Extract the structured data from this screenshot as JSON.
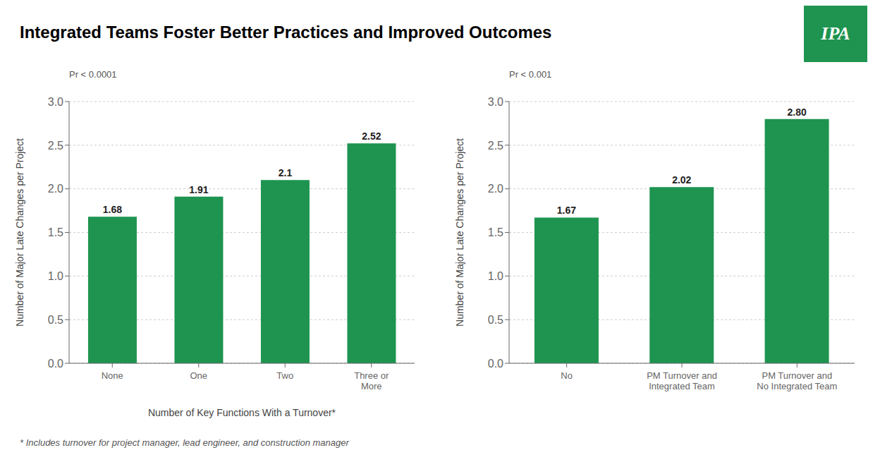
{
  "title": "Integrated Teams Foster Better Practices and Improved Outcomes",
  "annotations": [
    "* Includes turnover for project manager, lead engineer, and construction manager",
    "IPA"
  ],
  "chart_data": [
    {
      "type": "bar",
      "categories": [
        "None",
        "One",
        "Two",
        "Three or\nMore"
      ],
      "values": [
        1.68,
        1.91,
        2.1,
        2.52
      ],
      "color": "#1e9450",
      "xlabel": "Number of Key Functions With a Turnover*",
      "ylabel": "Number of Major Late Changes per Project",
      "annotations": [
        "Pr < 0.0001"
      ],
      "ylim": [
        0,
        3.0
      ],
      "yticks": [
        {
          "value": 0,
          "label": "0.0"
        },
        0.5,
        {
          "value": 1,
          "label": "1.0"
        },
        1.5,
        {
          "value": 2,
          "label": "2.0"
        },
        2.5,
        {
          "value": 3,
          "label": "3.0"
        }
      ],
      "grid": true,
      "data_labels": true
    },
    {
      "type": "bar",
      "categories": [
        "No",
        "PM Turnover and\nIntegrated Team",
        "PM Turnover and\nNo Integrated Team"
      ],
      "values": [
        1.67,
        2.02,
        2.8
      ],
      "value_labels": [
        "1.67",
        "2.02",
        "2.80"
      ],
      "color": "#1e9450",
      "ylabel": "Number of Major Late Changes per Project",
      "annotations": [
        "Pr < 0.001"
      ],
      "ylim": [
        0,
        3.0
      ],
      "yticks": [
        {
          "value": 0,
          "label": "0.0"
        },
        0.5,
        {
          "value": 1,
          "label": "1.0"
        },
        1.5,
        {
          "value": 2,
          "label": "2.0"
        },
        2.5,
        {
          "value": 3,
          "label": "3.0"
        }
      ],
      "grid": true,
      "data_labels": true
    }
  ]
}
